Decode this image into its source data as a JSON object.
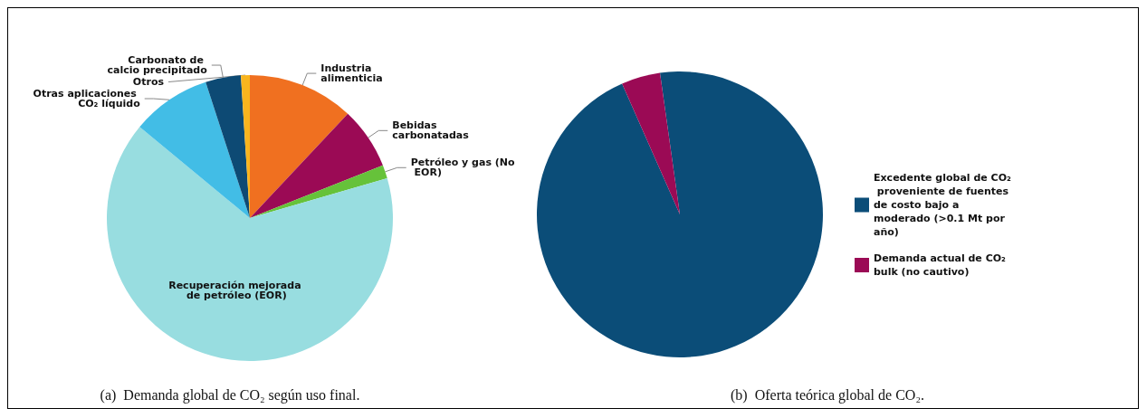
{
  "chart_data": [
    {
      "type": "pie",
      "title": "(a)  Demanda global de CO₂ según uso final.",
      "categories": [
        "Industria alimenticia",
        "Bebidas carbonatadas",
        "Petróleo y gas (No EOR)",
        "Recuperación mejorada de petróleo (EOR)",
        "Otras aplicaciones CO₂ líquido",
        "Carbonato de calcio precipitado",
        "Otros"
      ],
      "values": [
        12,
        7,
        1.5,
        65.5,
        9,
        4,
        1
      ],
      "colors": [
        "#f07020",
        "#9b0a55",
        "#66c23a",
        "#98dde0",
        "#42bde6",
        "#0d4a74",
        "#f9b51e"
      ],
      "legend": false
    },
    {
      "type": "pie",
      "title": "(b)  Oferta teórica global de CO₂.",
      "categories": [
        "Excedente global de CO₂ proveniente de fuentes de costo bajo a moderado (>0.1 Mt por año)",
        "Demanda actual de CO₂ bulk (no cautivo)"
      ],
      "values": [
        95.6,
        4.4
      ],
      "colors": [
        "#0b4d78",
        "#9b0a55"
      ],
      "legend": "right"
    }
  ]
}
